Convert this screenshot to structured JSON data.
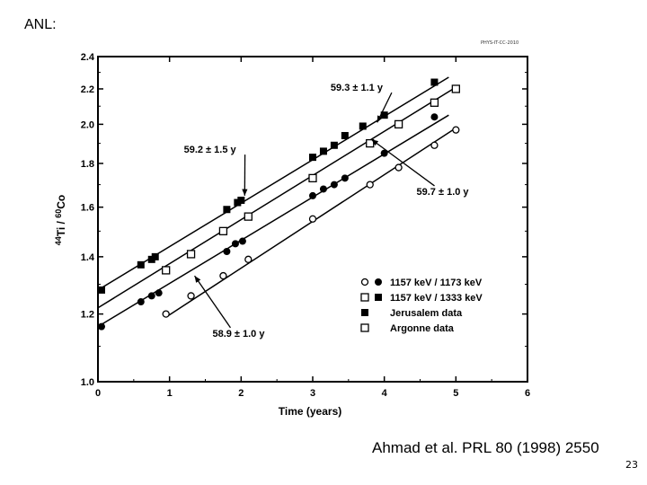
{
  "slide": {
    "label": "ANL:",
    "citation": "Ahmad et al. PRL 80 (1998) 2550",
    "page_number": "23",
    "stamp": "PHYS-IT-CC-2010"
  },
  "colors": {
    "line": "#000000",
    "background": "#ffffff"
  },
  "chart_data": {
    "type": "scatter",
    "log_y": true,
    "grid": false,
    "xlabel": "Time  (years)",
    "ylabel_parts": {
      "sup1": "44",
      "ti": "Ti",
      "slash": " / ",
      "sup2": "60",
      "co": "Co"
    },
    "xlim": [
      0,
      6
    ],
    "ylim": [
      1.0,
      2.4
    ],
    "x_ticks": [
      0,
      1,
      2,
      3,
      4,
      5,
      6
    ],
    "y_ticks": [
      1.0,
      1.2,
      1.4,
      1.6,
      1.8,
      2.0,
      2.2,
      2.4
    ],
    "y_tick_labels": [
      "1.0",
      "1.2",
      "1.4",
      "1.6",
      "1.8",
      "2.0",
      "2.2",
      "2.4"
    ],
    "legend_position": "bottom-right",
    "legend": [
      {
        "markers": [
          "open-circle",
          "filled-circle"
        ],
        "label": "1157 keV / 1173 keV"
      },
      {
        "markers": [
          "open-square",
          "filled-square"
        ],
        "label": "1157 keV / 1333 keV"
      },
      {
        "markers": [
          "filled-square"
        ],
        "label": "Jerusalem data"
      },
      {
        "markers": [
          "open-square"
        ],
        "label": "Argonne  data"
      }
    ],
    "series": [
      {
        "marker": "filled-square",
        "x": [
          0.05,
          0.6,
          0.75,
          0.8,
          1.8,
          1.95,
          2.0,
          3.0,
          3.15,
          3.3,
          3.45,
          3.7,
          4.0,
          4.7
        ],
        "y": [
          1.28,
          1.37,
          1.39,
          1.4,
          1.59,
          1.62,
          1.63,
          1.83,
          1.86,
          1.89,
          1.94,
          1.99,
          2.05,
          2.24
        ]
      },
      {
        "marker": "open-square",
        "x": [
          0.95,
          1.3,
          1.75,
          2.1,
          3.0,
          3.8,
          4.2,
          4.7,
          5.0
        ],
        "y": [
          1.35,
          1.41,
          1.5,
          1.56,
          1.73,
          1.9,
          2.0,
          2.12,
          2.2
        ]
      },
      {
        "marker": "filled-circle",
        "x": [
          0.05,
          0.6,
          0.75,
          0.85,
          1.8,
          1.92,
          2.02,
          3.0,
          3.15,
          3.3,
          3.45,
          4.0,
          4.7
        ],
        "y": [
          1.16,
          1.24,
          1.26,
          1.27,
          1.42,
          1.45,
          1.46,
          1.65,
          1.68,
          1.7,
          1.73,
          1.85,
          2.04
        ]
      },
      {
        "marker": "open-circle",
        "x": [
          0.95,
          1.3,
          1.75,
          2.1,
          3.0,
          3.8,
          4.2,
          4.7,
          5.0
        ],
        "y": [
          1.2,
          1.26,
          1.33,
          1.39,
          1.55,
          1.7,
          1.78,
          1.89,
          1.97
        ]
      }
    ],
    "fit_lines": [
      {
        "x": [
          0,
          4.9
        ],
        "y": [
          1.28,
          2.27
        ]
      },
      {
        "x": [
          0,
          5.0
        ],
        "y": [
          1.22,
          2.21
        ]
      },
      {
        "x": [
          0,
          4.9
        ],
        "y": [
          1.16,
          2.05
        ]
      },
      {
        "x": [
          0.95,
          5.0
        ],
        "y": [
          1.19,
          1.98
        ]
      }
    ],
    "annotations": [
      {
        "text": "59.3 ± 1.1 y",
        "at": [
          3.25,
          2.21
        ],
        "arrow_to": [
          3.9,
          2.01
        ]
      },
      {
        "text": "59.2 ± 1.5 y",
        "at": [
          1.2,
          1.87
        ],
        "arrow_to": [
          2.05,
          1.65
        ]
      },
      {
        "text": "59.7 ± 1.0 y",
        "at": [
          4.45,
          1.67
        ],
        "arrow_to": [
          3.82,
          1.92
        ]
      },
      {
        "text": "58.9 ± 1.0 y",
        "at": [
          1.6,
          1.14
        ],
        "arrow_to": [
          1.35,
          1.33
        ]
      }
    ]
  }
}
